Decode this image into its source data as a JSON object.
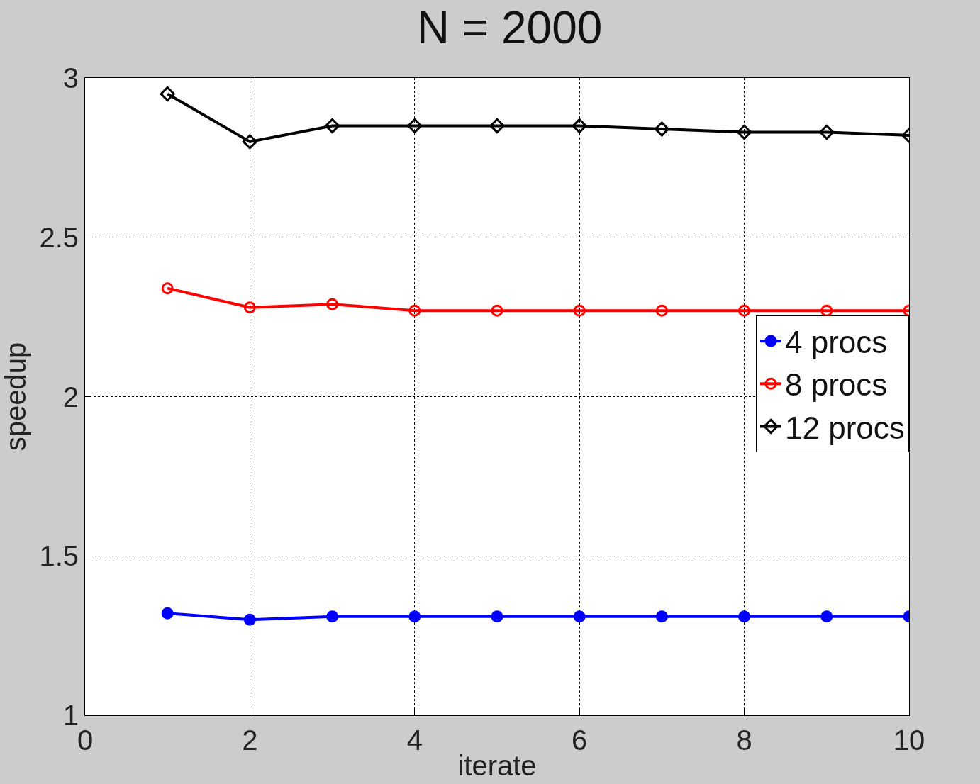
{
  "chart_data": {
    "type": "line",
    "title": "N = 2000",
    "xlabel": "iterate",
    "ylabel": "speedup",
    "x": [
      1,
      2,
      3,
      4,
      5,
      6,
      7,
      8,
      9,
      10
    ],
    "series": [
      {
        "name": "4 procs",
        "color": "#0000ff",
        "marker": "circle",
        "values": [
          1.32,
          1.3,
          1.31,
          1.31,
          1.31,
          1.31,
          1.31,
          1.31,
          1.31,
          1.31
        ]
      },
      {
        "name": "8 procs",
        "color": "#ff0000",
        "marker": "circle-open",
        "values": [
          2.34,
          2.28,
          2.29,
          2.27,
          2.27,
          2.27,
          2.27,
          2.27,
          2.27,
          2.27
        ]
      },
      {
        "name": "12 procs",
        "color": "#000000",
        "marker": "diamond-open",
        "values": [
          2.95,
          2.8,
          2.85,
          2.85,
          2.85,
          2.85,
          2.84,
          2.83,
          2.83,
          2.82
        ]
      }
    ],
    "xlim": [
      0,
      10
    ],
    "xticks": [
      0,
      2,
      4,
      6,
      8,
      10
    ],
    "ylim": [
      1,
      3
    ],
    "yticks": [
      1,
      1.5,
      2,
      2.5,
      3
    ],
    "grid": true,
    "legend": "right",
    "line_style": "solid"
  }
}
